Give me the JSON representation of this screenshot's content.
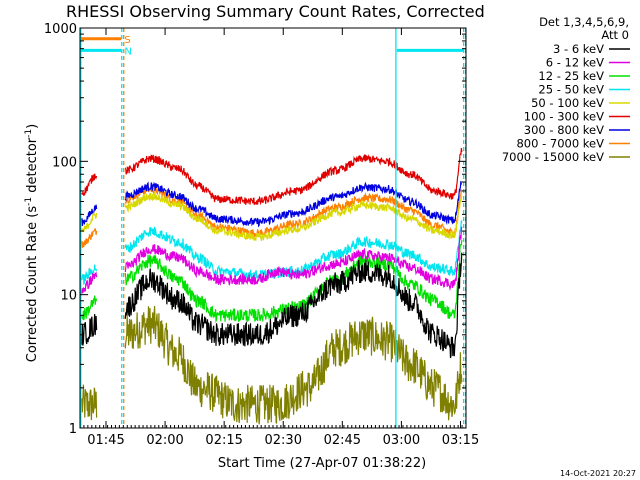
{
  "chart_data": {
    "type": "line",
    "title": "RHESSI Observing Summary Count Rates, Corrected",
    "xlabel": "Start Time (27-Apr-07 01:38:22)",
    "ylabel_main": "Corrected Count Rate (s",
    "ylabel_sup1": "-1",
    "ylabel_mid": " detector",
    "ylabel_sup2": "-1",
    "ylabel_end": ")",
    "y_scale": "log",
    "ylim": [
      1,
      1000
    ],
    "xlim_minutes": [
      0,
      98
    ],
    "x_ticks": [
      {
        "label": "01:45",
        "minute": 6.6
      },
      {
        "label": "02:00",
        "minute": 21.6
      },
      {
        "label": "02:15",
        "minute": 36.6
      },
      {
        "label": "02:30",
        "minute": 51.6
      },
      {
        "label": "02:45",
        "minute": 66.6
      },
      {
        "label": "03:00",
        "minute": 81.6
      },
      {
        "label": "03:15",
        "minute": 96.6
      }
    ],
    "y_ticks": [
      {
        "label": "1",
        "value": 1
      },
      {
        "label": "10",
        "value": 10
      },
      {
        "label": "100",
        "value": 100
      },
      {
        "label": "1000",
        "value": 1000
      }
    ],
    "legend_header": [
      "Det 1,3,4,5,6,9,",
      "Att 0"
    ],
    "legend_position": "right",
    "gap_minutes": [
      4.5,
      11.0
    ],
    "flags": [
      {
        "label": "S",
        "color": "#FF7F00",
        "value": 830,
        "segments": [
          [
            0,
            10.5
          ]
        ]
      },
      {
        "label": "N",
        "color": "#00E5EE",
        "value": 680,
        "segments": [
          [
            0,
            10.5
          ],
          [
            80.2,
            97.5
          ]
        ]
      }
    ],
    "vertical_markers": [
      {
        "minute": 0.2,
        "color": "#00E5EE",
        "style": "solid"
      },
      {
        "minute": 10.6,
        "color": "#00E5EE",
        "style": "dashed"
      },
      {
        "minute": 10.6,
        "color": "#FF7F00",
        "style": "dashed"
      },
      {
        "minute": 80.2,
        "color": "#00E5EE",
        "style": "solid"
      },
      {
        "minute": 97.4,
        "color": "#00E5EE",
        "style": "dashed"
      },
      {
        "minute": 97.4,
        "color": "#FF7F00",
        "style": "dashed"
      }
    ],
    "series": [
      {
        "name": "3 - 6 keV",
        "color": "#000000",
        "pre_gap": [
          [
            0.5,
            5
          ],
          [
            4.3,
            6
          ]
        ],
        "values": [
          [
            11.5,
            8
          ],
          [
            18,
            13
          ],
          [
            25,
            9
          ],
          [
            30,
            6
          ],
          [
            35,
            5
          ],
          [
            45,
            5
          ],
          [
            55,
            7
          ],
          [
            65,
            12
          ],
          [
            72,
            15
          ],
          [
            78,
            14
          ],
          [
            84,
            9
          ],
          [
            90,
            5
          ],
          [
            95,
            4
          ],
          [
            97,
            20
          ]
        ],
        "noise": 0.09
      },
      {
        "name": "6 - 12 keV",
        "color": "#E000E0",
        "pre_gap": [
          [
            0.5,
            11
          ],
          [
            4.3,
            14
          ]
        ],
        "values": [
          [
            11.5,
            16
          ],
          [
            18,
            22
          ],
          [
            25,
            19
          ],
          [
            30,
            15
          ],
          [
            35,
            13
          ],
          [
            45,
            13
          ],
          [
            50,
            15
          ],
          [
            55,
            14
          ],
          [
            65,
            17
          ],
          [
            72,
            20
          ],
          [
            78,
            19
          ],
          [
            84,
            16
          ],
          [
            90,
            13
          ],
          [
            95,
            12
          ],
          [
            97,
            30
          ]
        ],
        "noise": 0.04
      },
      {
        "name": "12 - 25 keV",
        "color": "#00E000",
        "pre_gap": [
          [
            0.5,
            7
          ],
          [
            4.3,
            9
          ]
        ],
        "values": [
          [
            11.5,
            13
          ],
          [
            18,
            18
          ],
          [
            25,
            13
          ],
          [
            30,
            9
          ],
          [
            35,
            7
          ],
          [
            45,
            7
          ],
          [
            55,
            8
          ],
          [
            65,
            13
          ],
          [
            72,
            18
          ],
          [
            78,
            17
          ],
          [
            84,
            12
          ],
          [
            90,
            9
          ],
          [
            95,
            7
          ],
          [
            97,
            25
          ]
        ],
        "noise": 0.05
      },
      {
        "name": "25 - 50 keV",
        "color": "#00E5EE",
        "pre_gap": [
          [
            0.5,
            13
          ],
          [
            4.3,
            16
          ]
        ],
        "values": [
          [
            11.5,
            22
          ],
          [
            18,
            30
          ],
          [
            25,
            25
          ],
          [
            30,
            19
          ],
          [
            35,
            15
          ],
          [
            45,
            14
          ],
          [
            55,
            15
          ],
          [
            65,
            20
          ],
          [
            72,
            25
          ],
          [
            78,
            24
          ],
          [
            84,
            20
          ],
          [
            90,
            16
          ],
          [
            95,
            15
          ],
          [
            97,
            35
          ]
        ],
        "noise": 0.04
      },
      {
        "name": "50 - 100 keV",
        "color": "#D8D800",
        "pre_gap": [
          [
            0.5,
            30
          ],
          [
            4.3,
            40
          ]
        ],
        "values": [
          [
            11.5,
            45
          ],
          [
            18,
            55
          ],
          [
            25,
            47
          ],
          [
            30,
            37
          ],
          [
            35,
            30
          ],
          [
            45,
            27
          ],
          [
            55,
            31
          ],
          [
            65,
            41
          ],
          [
            72,
            47
          ],
          [
            78,
            45
          ],
          [
            84,
            37
          ],
          [
            90,
            30
          ],
          [
            95,
            28
          ],
          [
            97,
            55
          ]
        ],
        "noise": 0.03
      },
      {
        "name": "100 - 300 keV",
        "color": "#E00000",
        "pre_gap": [
          [
            0.5,
            58
          ],
          [
            4.3,
            80
          ]
        ],
        "values": [
          [
            11.5,
            85
          ],
          [
            18,
            105
          ],
          [
            25,
            88
          ],
          [
            30,
            65
          ],
          [
            35,
            52
          ],
          [
            45,
            50
          ],
          [
            55,
            60
          ],
          [
            65,
            85
          ],
          [
            72,
            105
          ],
          [
            78,
            100
          ],
          [
            84,
            80
          ],
          [
            90,
            60
          ],
          [
            95,
            55
          ],
          [
            97,
            120
          ]
        ],
        "noise": 0.03
      },
      {
        "name": "300 - 800 keV",
        "color": "#0000E0",
        "pre_gap": [
          [
            0.5,
            35
          ],
          [
            4.3,
            45
          ]
        ],
        "values": [
          [
            11.5,
            55
          ],
          [
            18,
            65
          ],
          [
            25,
            55
          ],
          [
            30,
            44
          ],
          [
            35,
            37
          ],
          [
            45,
            35
          ],
          [
            55,
            41
          ],
          [
            65,
            54
          ],
          [
            72,
            64
          ],
          [
            78,
            62
          ],
          [
            84,
            50
          ],
          [
            90,
            39
          ],
          [
            95,
            36
          ],
          [
            97,
            70
          ]
        ],
        "noise": 0.03
      },
      {
        "name": "800 - 7000 keV",
        "color": "#FF7F00",
        "pre_gap": [
          [
            0.5,
            24
          ],
          [
            4.3,
            30
          ]
        ],
        "values": [
          [
            11.5,
            52
          ],
          [
            18,
            62
          ],
          [
            25,
            50
          ],
          [
            30,
            39
          ],
          [
            35,
            32
          ],
          [
            45,
            29
          ],
          [
            55,
            34
          ],
          [
            65,
            45
          ],
          [
            72,
            53
          ],
          [
            78,
            52
          ],
          [
            84,
            43
          ],
          [
            90,
            33
          ],
          [
            95,
            29
          ],
          [
            97,
            60
          ]
        ],
        "noise": 0.03
      },
      {
        "name": "7000 - 15000 keV",
        "color": "#808000",
        "pre_gap": [
          [
            0.5,
            1.5
          ],
          [
            4.3,
            1.5
          ]
        ],
        "values": [
          [
            11.5,
            5
          ],
          [
            18,
            6
          ],
          [
            25,
            3.5
          ],
          [
            30,
            2
          ],
          [
            40,
            1.5
          ],
          [
            50,
            1.5
          ],
          [
            58,
            2
          ],
          [
            65,
            4
          ],
          [
            72,
            5
          ],
          [
            78,
            4.5
          ],
          [
            84,
            3
          ],
          [
            90,
            2
          ],
          [
            95,
            1.5
          ],
          [
            97,
            3
          ]
        ],
        "noise": 0.15
      }
    ],
    "timestamp": "14-Oct-2021 20:27"
  }
}
